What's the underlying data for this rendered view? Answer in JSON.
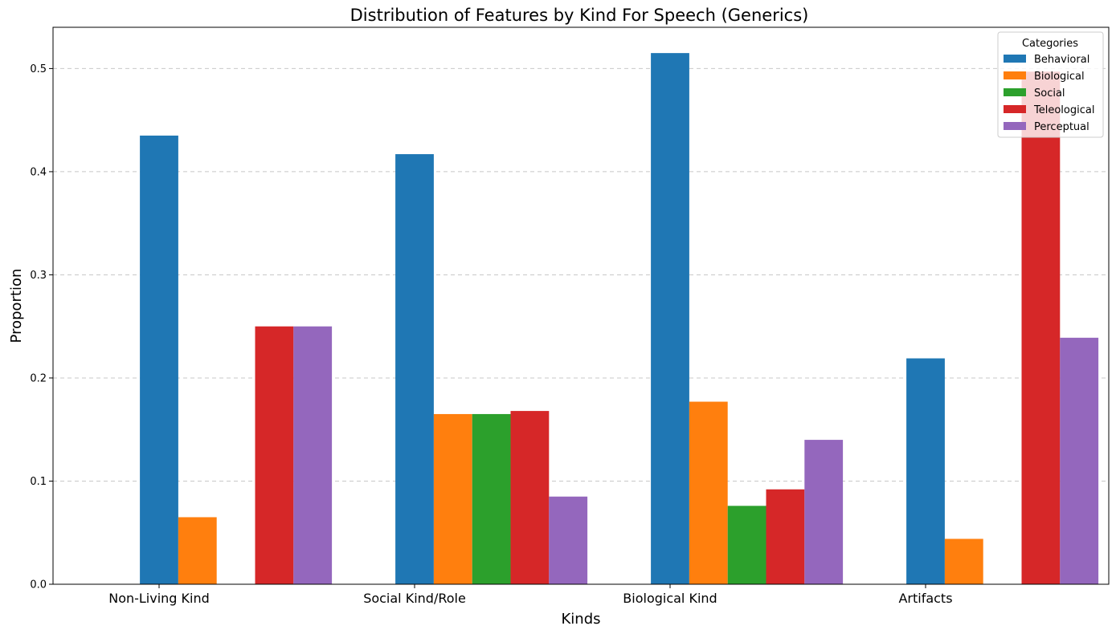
{
  "chart_data": {
    "type": "bar",
    "title": "Distribution of Features by Kind For Speech (Generics)",
    "xlabel": "Kinds",
    "ylabel": "Proportion",
    "categories": [
      "Non-Living Kind",
      "Social Kind/Role",
      "Biological Kind",
      "Artifacts"
    ],
    "ylim": [
      0,
      0.54
    ],
    "yticks": [
      "0.0",
      "0.1",
      "0.2",
      "0.3",
      "0.4",
      "0.5"
    ],
    "grid": "y-dashed",
    "legend": {
      "title": "Categories",
      "position": "top-right"
    },
    "series": [
      {
        "name": "Behavioral",
        "color": "#1f77b4",
        "values": [
          0.435,
          0.417,
          0.515,
          0.219
        ]
      },
      {
        "name": "Biological",
        "color": "#ff7f0e",
        "values": [
          0.065,
          0.165,
          0.177,
          0.044
        ]
      },
      {
        "name": "Social",
        "color": "#2ca02c",
        "values": [
          0.0,
          0.165,
          0.076,
          0.0
        ]
      },
      {
        "name": "Teleological",
        "color": "#d62728",
        "values": [
          0.25,
          0.168,
          0.092,
          0.497
        ]
      },
      {
        "name": "Perceptual",
        "color": "#9467bd",
        "values": [
          0.25,
          0.085,
          0.14,
          0.239
        ]
      }
    ]
  }
}
